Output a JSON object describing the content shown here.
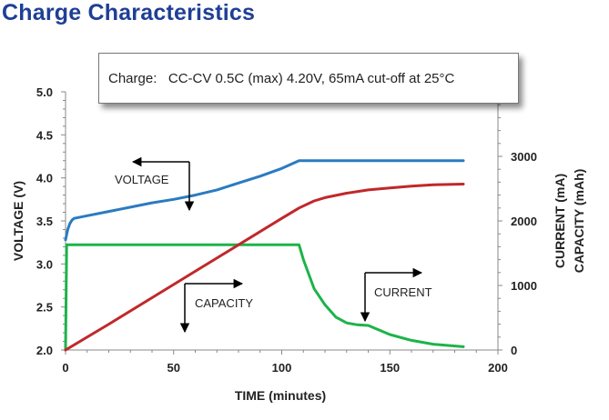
{
  "page": {
    "title": "Charge Characteristics"
  },
  "condition_box": {
    "text": "Charge:   CC-CV 0.5C (max) 4.20V, 65mA cut-off at 25°C"
  },
  "chart_data": {
    "type": "line",
    "xlabel": "TIME (minutes)",
    "ylabel_left": "VOLTAGE (V)",
    "ylabel_right": [
      "CURRENT (mA)",
      "CAPACITY (mAh)"
    ],
    "xlim": [
      0,
      200
    ],
    "ylim_left": [
      2.0,
      5.0
    ],
    "ylim_right": [
      0,
      4000
    ],
    "x_ticks": [
      "0",
      "50",
      "100",
      "150",
      "200"
    ],
    "y_left_ticks": [
      "2.0",
      "2.5",
      "3.0",
      "3.5",
      "4.0",
      "4.5",
      "5.0"
    ],
    "y_right_ticks": [
      "0",
      "1000",
      "2000",
      "3000"
    ],
    "grid": false,
    "annotations": [
      "VOLTAGE",
      "CAPACITY",
      "CURRENT"
    ],
    "series": [
      {
        "name": "VOLTAGE",
        "axis": "left",
        "color": "#2a7bc0",
        "x": [
          0,
          1,
          2,
          3,
          4,
          10,
          20,
          30,
          40,
          50,
          60,
          70,
          80,
          90,
          100,
          108,
          110,
          120,
          140,
          160,
          184
        ],
        "y": [
          3.28,
          3.4,
          3.47,
          3.51,
          3.53,
          3.56,
          3.61,
          3.66,
          3.71,
          3.75,
          3.8,
          3.86,
          3.94,
          4.02,
          4.11,
          4.2,
          4.2,
          4.2,
          4.2,
          4.2,
          4.2
        ]
      },
      {
        "name": "CURRENT",
        "axis": "right",
        "color": "#1db34a",
        "x": [
          0,
          0.5,
          1,
          50,
          100,
          108,
          110,
          115,
          120,
          125,
          130,
          135,
          140,
          145,
          150,
          160,
          170,
          184
        ],
        "y": [
          0,
          1630,
          1630,
          1630,
          1630,
          1630,
          1400,
          950,
          700,
          510,
          420,
          390,
          380,
          310,
          240,
          150,
          90,
          50
        ]
      },
      {
        "name": "CAPACITY",
        "axis": "right",
        "color": "#c0282b",
        "x": [
          0,
          20,
          40,
          60,
          80,
          100,
          108,
          115,
          120,
          130,
          140,
          150,
          160,
          170,
          184
        ],
        "y": [
          0,
          400,
          810,
          1220,
          1630,
          2040,
          2200,
          2310,
          2360,
          2430,
          2480,
          2510,
          2540,
          2560,
          2570
        ]
      }
    ]
  }
}
